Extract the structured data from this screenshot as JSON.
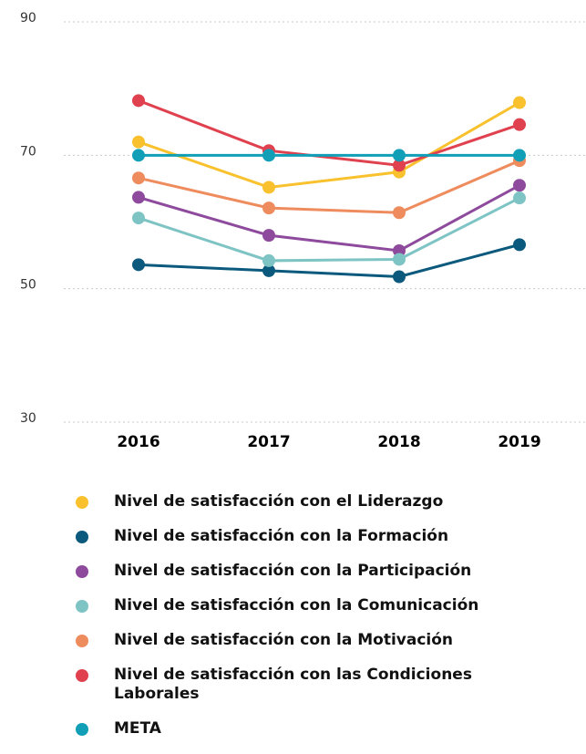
{
  "chart_data": {
    "type": "line",
    "categories": [
      "2016",
      "2017",
      "2018",
      "2019"
    ],
    "series": [
      {
        "name": "Nivel de satisfacción con el Liderazgo",
        "color": "#f9c12e",
        "values": [
          72.0,
          65.2,
          67.5,
          77.9
        ]
      },
      {
        "name": "Nivel de satisfacción con la Formación",
        "color": "#0b5a7d",
        "values": [
          53.6,
          52.7,
          51.8,
          56.6
        ]
      },
      {
        "name": "Nivel de satisfacción con la Participación",
        "color": "#8e4a9c",
        "values": [
          63.7,
          58.0,
          55.7,
          65.5
        ]
      },
      {
        "name": "Nivel de satisfacción con la Comunicación",
        "color": "#7ec4c4",
        "values": [
          60.6,
          54.2,
          54.4,
          63.6
        ]
      },
      {
        "name": "Nivel de satisfacción con la Motivación",
        "color": "#ee8c5e",
        "values": [
          66.6,
          62.1,
          61.4,
          69.2
        ]
      },
      {
        "name": "Nivel de satisfacción con las Condiciones Laborales",
        "color": "#e0414f",
        "values": [
          78.2,
          70.7,
          68.5,
          74.6
        ]
      },
      {
        "name": "META",
        "color": "#119fb8",
        "values": [
          70,
          70,
          70,
          70
        ]
      }
    ],
    "ylim": [
      30,
      90
    ],
    "yticks": [
      30,
      50,
      70,
      90
    ],
    "grid": true
  }
}
